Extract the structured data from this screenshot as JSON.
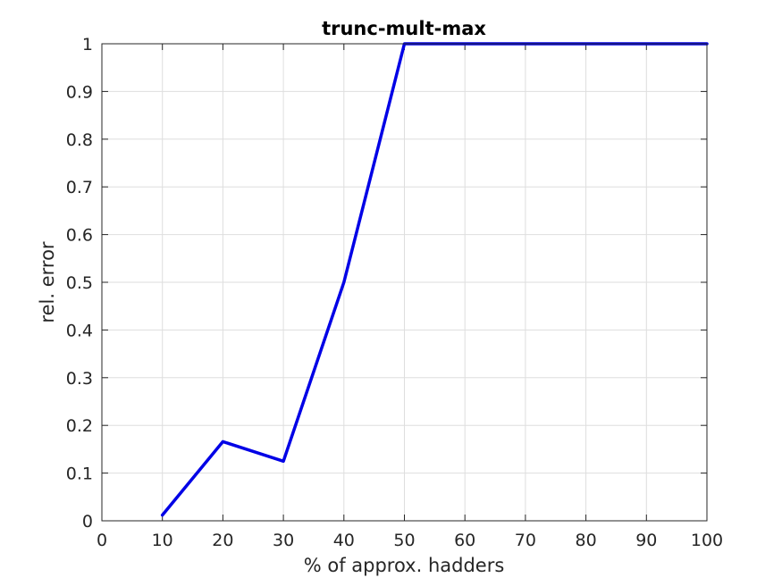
{
  "chart_data": {
    "type": "line",
    "title": "trunc-mult-max",
    "xlabel": "% of approx. hadders",
    "ylabel": "rel. error",
    "xlim": [
      0,
      100
    ],
    "ylim": [
      0,
      1
    ],
    "xticks": [
      "0",
      "10",
      "20",
      "30",
      "40",
      "50",
      "60",
      "70",
      "80",
      "90",
      "100"
    ],
    "yticks": [
      "0",
      "0.1",
      "0.2",
      "0.3",
      "0.4",
      "0.5",
      "0.6",
      "0.7",
      "0.8",
      "0.9",
      "1"
    ],
    "grid": true,
    "series": [
      {
        "color": "#0000e6",
        "x": [
          10,
          20,
          30,
          40,
          50,
          60,
          70,
          80,
          90,
          100
        ],
        "y": [
          0.012,
          0.166,
          0.125,
          0.5,
          1.0,
          1.0,
          1.0,
          1.0,
          1.0,
          1.0
        ]
      }
    ]
  }
}
